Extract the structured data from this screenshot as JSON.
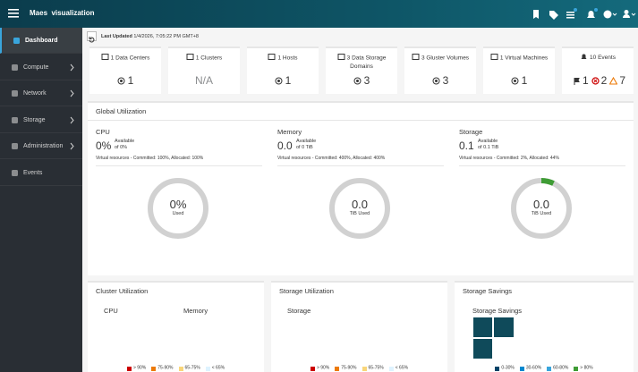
{
  "header": {
    "brand": "Maes  visualization"
  },
  "sidebar": {
    "items": [
      "Dashboard",
      "Compute",
      "Network",
      "Storage",
      "Administration",
      "Events"
    ]
  },
  "toolbar": {
    "last_updated_label": "Last Updated",
    "last_updated": "1/4/2026, 7:05:22 PM GMT+8"
  },
  "status_cards": [
    {
      "count": 1,
      "label": "Data Centers",
      "value": 1
    },
    {
      "count": 1,
      "label": "Clusters",
      "value": "N/A"
    },
    {
      "count": 1,
      "label": "Hosts",
      "value": 1
    },
    {
      "count": 3,
      "label": "Data Storage Domains",
      "value": 3
    },
    {
      "count": 3,
      "label": "Gluster Volumes",
      "value": 3
    },
    {
      "count": 1,
      "label": "Virtual Machines",
      "value": 1
    }
  ],
  "events_card": {
    "count": 10,
    "label": "Events",
    "alerts": 1,
    "errors": 2,
    "warnings": 7
  },
  "global_utilization": {
    "title": "Global Utilization",
    "columns": [
      {
        "title": "CPU",
        "used": "0%",
        "available_label": "Available",
        "available_of": "of 0%",
        "details": "Virtual resources - Committed: 100%, Allocated: 100%",
        "donut_value": "0%",
        "donut_label": "Used"
      },
      {
        "title": "Memory",
        "used": "0.0",
        "available_label": "Available",
        "available_of": "of 0 TiB",
        "details": "Virtual resources - Committed: 400%, Allocated: 400%",
        "donut_value": "0.0",
        "donut_label": "TiB Used"
      },
      {
        "title": "Storage",
        "used": "0.1",
        "available_label": "Available",
        "available_of": "of 0.1 TiB",
        "details": "Virtual resources - Committed: 2%, Allocated: 44%",
        "donut_value": "0.0",
        "donut_label": "TiB Used"
      }
    ]
  },
  "cluster_utilization": {
    "title": "Cluster Utilization",
    "columns": [
      "CPU",
      "Memory"
    ],
    "legend": [
      {
        "label": "> 90%",
        "color": "#cc0000"
      },
      {
        "label": "75-90%",
        "color": "#ec7a08"
      },
      {
        "label": "65-75%",
        "color": "#f9d67a"
      },
      {
        "label": "< 65%",
        "color": "#def3ff"
      }
    ]
  },
  "storage_utilization": {
    "title": "Storage Utilization",
    "columns": [
      "Storage"
    ],
    "legend": [
      {
        "label": "> 90%",
        "color": "#cc0000"
      },
      {
        "label": "75-90%",
        "color": "#ec7a08"
      },
      {
        "label": "65-75%",
        "color": "#f9d67a"
      },
      {
        "label": "< 65%",
        "color": "#def3ff"
      }
    ]
  },
  "storage_savings": {
    "title": "Storage Savings",
    "columns": [
      "Storage Savings"
    ],
    "legend": [
      {
        "label": "0-30%",
        "color": "#004368"
      },
      {
        "label": "30-60%",
        "color": "#0088ce"
      },
      {
        "label": "60-80%",
        "color": "#39a5dc"
      },
      {
        "label": "> 80%",
        "color": "#3f9c35"
      }
    ]
  }
}
